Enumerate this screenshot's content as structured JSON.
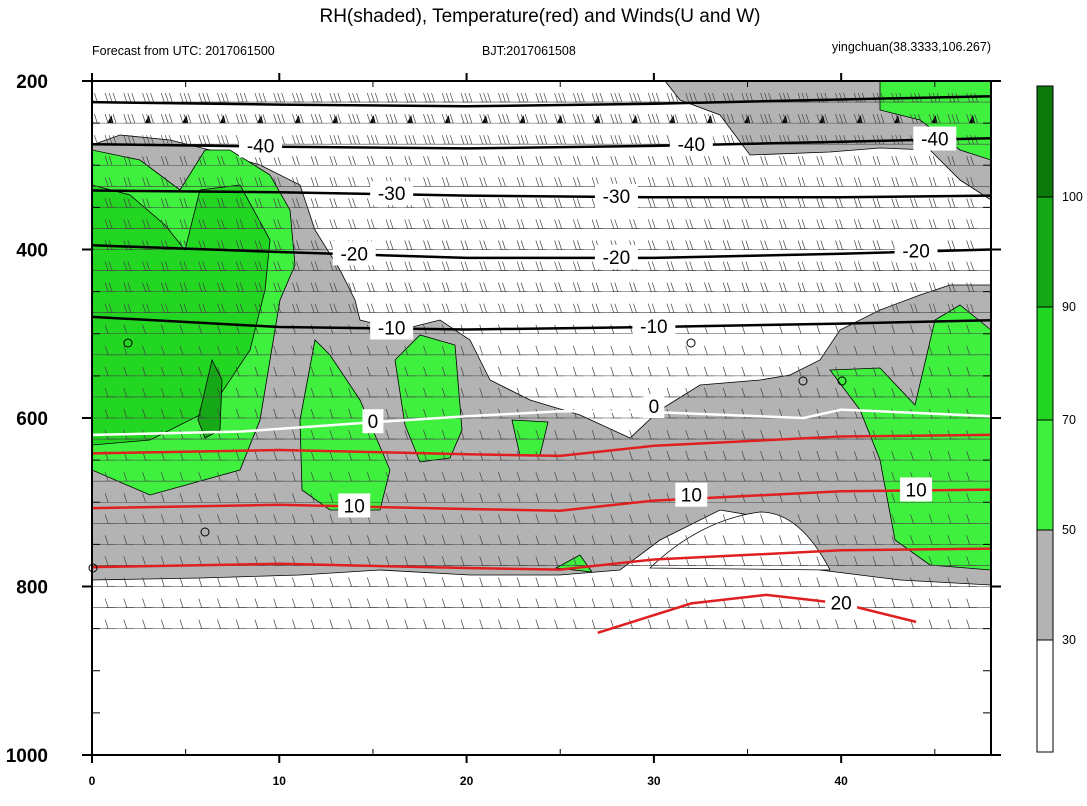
{
  "title": "RH(shaded), Temperature(red) and Winds(U and W)",
  "subtitle_left": "Forecast from UTC: 2017061500",
  "subtitle_center": "BJT:2017061508",
  "subtitle_right": "yingchuan(38.3333,106.267)",
  "chart_data": {
    "type": "heatmap",
    "description_fields": {
      "shaded": "RH",
      "lines": "Temperature",
      "barbs": "Winds (U and W)"
    },
    "x_ticks": [
      0,
      10,
      20,
      30,
      40
    ],
    "xlim": [
      0,
      48
    ],
    "y_ticks": [
      200,
      400,
      600,
      800,
      1000
    ],
    "ylim": [
      1000,
      200
    ],
    "colorbar": {
      "labels": [
        30,
        50,
        70,
        90,
        100
      ],
      "levels": [
        {
          "from": 0,
          "to": 30,
          "color": "#ffffff"
        },
        {
          "from": 30,
          "to": 50,
          "color": "#b3b3b3"
        },
        {
          "from": 50,
          "to": 70,
          "color": "#3ff03f"
        },
        {
          "from": 70,
          "to": 90,
          "color": "#22d622"
        },
        {
          "from": 90,
          "to": 100,
          "color": "#16a816"
        },
        {
          "from": 100,
          "to": 110,
          "color": "#0b7a0b"
        }
      ]
    },
    "temperature_contours": [
      {
        "value": -40,
        "labels": [
          "-40",
          "-40",
          "-40"
        ],
        "color": "#000000",
        "points": [
          [
            0,
            275
          ],
          [
            10,
            278
          ],
          [
            20,
            280
          ],
          [
            30,
            277
          ],
          [
            40,
            272
          ],
          [
            48,
            268
          ]
        ]
      },
      {
        "value": -30,
        "labels": [
          "-30",
          "-30"
        ],
        "color": "#000000",
        "points": [
          [
            0,
            330
          ],
          [
            10,
            332
          ],
          [
            20,
            336
          ],
          [
            30,
            338
          ],
          [
            40,
            338
          ],
          [
            48,
            336
          ]
        ]
      },
      {
        "value": -20,
        "labels": [
          "-20",
          "-20",
          "-20"
        ],
        "color": "#000000",
        "points": [
          [
            0,
            395
          ],
          [
            10,
            403
          ],
          [
            20,
            410
          ],
          [
            30,
            410
          ],
          [
            40,
            405
          ],
          [
            48,
            400
          ]
        ]
      },
      {
        "value": -10,
        "labels": [
          "-10",
          "-10"
        ],
        "color": "#000000",
        "points": [
          [
            0,
            480
          ],
          [
            10,
            492
          ],
          [
            20,
            495
          ],
          [
            30,
            492
          ],
          [
            40,
            488
          ],
          [
            48,
            484
          ]
        ]
      },
      {
        "value": 0,
        "labels": [
          "0",
          "0"
        ],
        "color": "#ffffff",
        "points": [
          [
            0,
            620
          ],
          [
            8,
            616
          ],
          [
            15,
            605
          ],
          [
            20,
            598
          ],
          [
            25,
            592
          ],
          [
            30,
            593
          ],
          [
            38,
            600
          ],
          [
            40,
            590
          ],
          [
            48,
            598
          ]
        ]
      },
      {
        "value": 10,
        "labels": [
          "10",
          "10",
          "10"
        ],
        "color": "#e02020",
        "points": [
          [
            0,
            707
          ],
          [
            10,
            703
          ],
          [
            20,
            708
          ],
          [
            25,
            710
          ],
          [
            30,
            698
          ],
          [
            40,
            687
          ],
          [
            48,
            685
          ]
        ]
      },
      {
        "value": 20,
        "labels": [
          "20"
        ],
        "color": "#e02020",
        "points": [
          [
            27,
            855
          ],
          [
            32,
            820
          ],
          [
            36,
            810
          ],
          [
            40,
            820
          ],
          [
            44,
            842
          ]
        ]
      }
    ],
    "wind_barbs": "rows of wind barbs at each pressure level",
    "grid": false
  }
}
